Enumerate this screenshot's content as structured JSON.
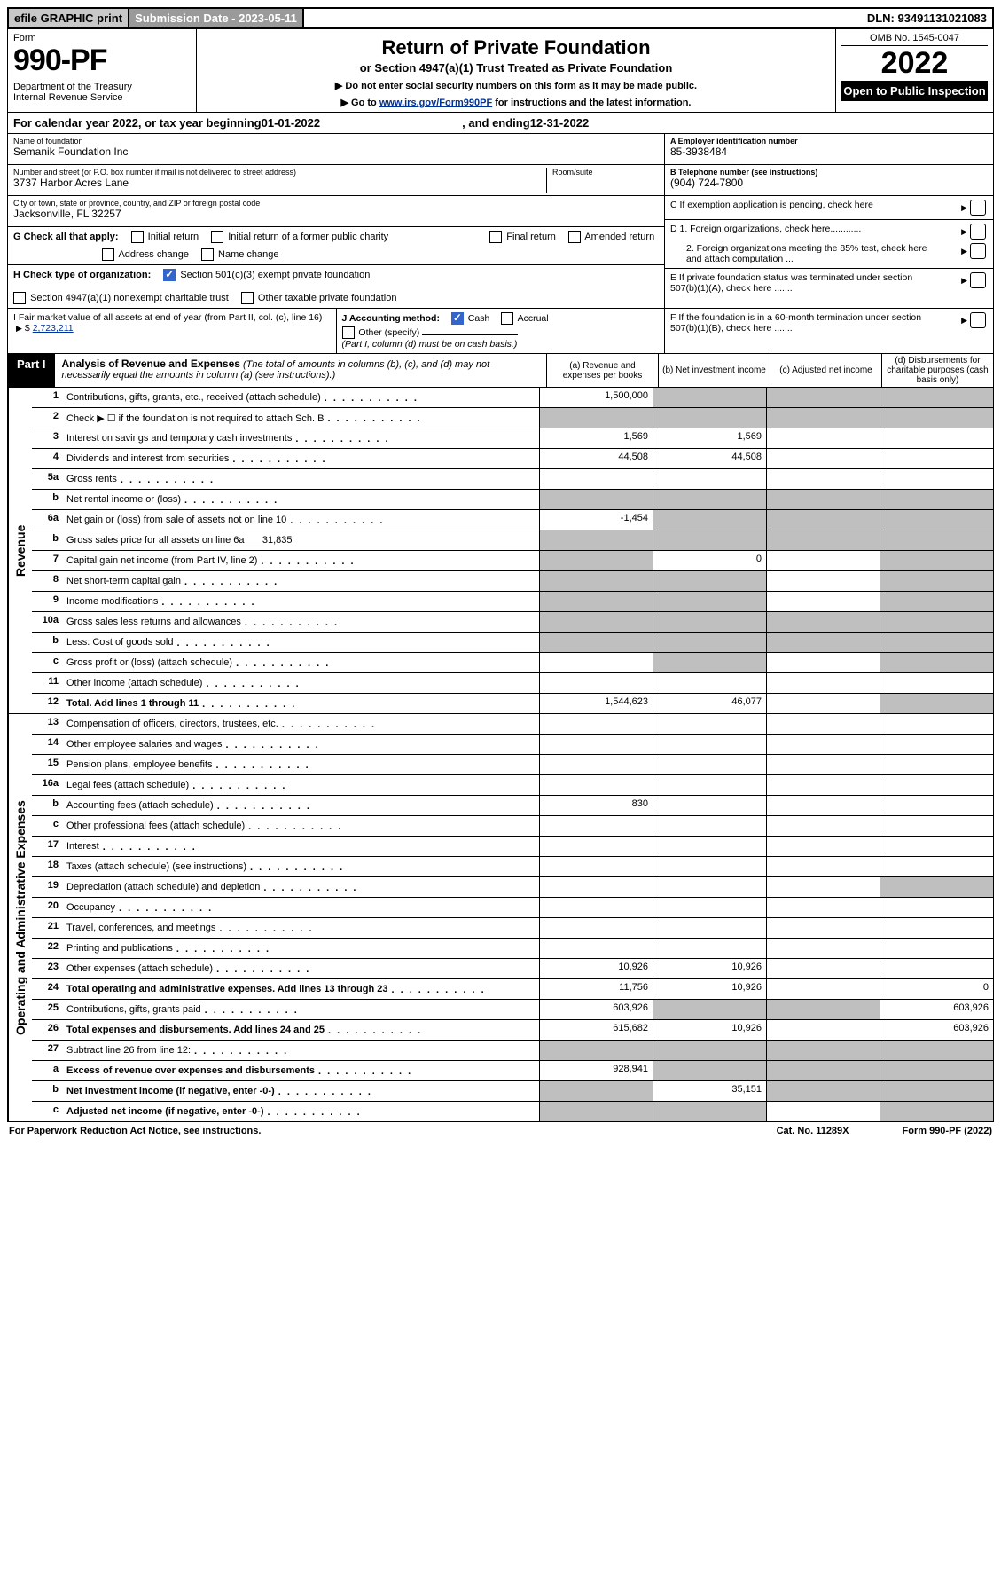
{
  "top": {
    "efile": "efile GRAPHIC print",
    "sub_label": "Submission Date - 2023-05-11",
    "dln": "DLN: 93491131021083"
  },
  "header": {
    "form_word": "Form",
    "form_no": "990-PF",
    "dept": "Department of the Treasury\nInternal Revenue Service",
    "title": "Return of Private Foundation",
    "subtitle": "or Section 4947(a)(1) Trust Treated as Private Foundation",
    "note1": "▶ Do not enter social security numbers on this form as it may be made public.",
    "note2_pre": "▶ Go to ",
    "note2_link": "www.irs.gov/Form990PF",
    "note2_post": " for instructions and the latest information.",
    "omb": "OMB No. 1545-0047",
    "year": "2022",
    "open": "Open to Public Inspection"
  },
  "calyear": {
    "pre": "For calendar year 2022, or tax year beginning ",
    "begin": "01-01-2022",
    "mid": ", and ending ",
    "end": "12-31-2022"
  },
  "info": {
    "name_label": "Name of foundation",
    "name": "Semanik Foundation Inc",
    "addr_label": "Number and street (or P.O. box number if mail is not delivered to street address)",
    "addr": "3737 Harbor Acres Lane",
    "room_label": "Room/suite",
    "city_label": "City or town, state or province, country, and ZIP or foreign postal code",
    "city": "Jacksonville, FL  32257",
    "ein_label": "A Employer identification number",
    "ein": "85-3938484",
    "tel_label": "B Telephone number (see instructions)",
    "tel": "(904) 724-7800",
    "c": "C If exemption application is pending, check here",
    "d1": "D 1. Foreign organizations, check here............",
    "d2": "2. Foreign organizations meeting the 85% test, check here and attach computation ...",
    "e": "E  If private foundation status was terminated under section 507(b)(1)(A), check here .......",
    "f": "F  If the foundation is in a 60-month termination under section 507(b)(1)(B), check here .......",
    "g_label": "G Check all that apply:",
    "g_opts": [
      "Initial return",
      "Initial return of a former public charity",
      "Final return",
      "Amended return",
      "Address change",
      "Name change"
    ],
    "h_label": "H Check type of organization:",
    "h_opts": [
      "Section 501(c)(3) exempt private foundation",
      "Section 4947(a)(1) nonexempt charitable trust",
      "Other taxable private foundation"
    ],
    "i_label": "I Fair market value of all assets at end of year (from Part II, col. (c), line 16) ",
    "i_val": "2,723,211",
    "j_label": "J Accounting method:",
    "j_opts": [
      "Cash",
      "Accrual",
      "Other (specify)"
    ],
    "j_note": "(Part I, column (d) must be on cash basis.)"
  },
  "part": {
    "badge": "Part I",
    "title": "Analysis of Revenue and Expenses",
    "note": "(The total of amounts in columns (b), (c), and (d) may not necessarily equal the amounts in column (a) (see instructions).)",
    "cols": [
      "(a)   Revenue and expenses per books",
      "(b)   Net investment income",
      "(c)   Adjusted net income",
      "(d)   Disbursements for charitable purposes (cash basis only)"
    ]
  },
  "side_labels": {
    "rev": "Revenue",
    "exp": "Operating and Administrative Expenses"
  },
  "rows": {
    "r1": {
      "no": "1",
      "desc": "Contributions, gifts, grants, etc., received (attach schedule)",
      "a": "1,500,000"
    },
    "r2": {
      "no": "2",
      "desc": "Check ▶ ☐ if the foundation is not required to attach Sch. B"
    },
    "r3": {
      "no": "3",
      "desc": "Interest on savings and temporary cash investments",
      "a": "1,569",
      "b": "1,569"
    },
    "r4": {
      "no": "4",
      "desc": "Dividends and interest from securities",
      "a": "44,508",
      "b": "44,508"
    },
    "r5a": {
      "no": "5a",
      "desc": "Gross rents"
    },
    "r5b": {
      "no": "b",
      "desc": "Net rental income or (loss)"
    },
    "r6a": {
      "no": "6a",
      "desc": "Net gain or (loss) from sale of assets not on line 10",
      "a": "-1,454"
    },
    "r6b": {
      "no": "b",
      "desc": "Gross sales price for all assets on line 6a",
      "inline": "31,835"
    },
    "r7": {
      "no": "7",
      "desc": "Capital gain net income (from Part IV, line 2)",
      "b": "0"
    },
    "r8": {
      "no": "8",
      "desc": "Net short-term capital gain"
    },
    "r9": {
      "no": "9",
      "desc": "Income modifications"
    },
    "r10a": {
      "no": "10a",
      "desc": "Gross sales less returns and allowances"
    },
    "r10b": {
      "no": "b",
      "desc": "Less: Cost of goods sold"
    },
    "r10c": {
      "no": "c",
      "desc": "Gross profit or (loss) (attach schedule)"
    },
    "r11": {
      "no": "11",
      "desc": "Other income (attach schedule)"
    },
    "r12": {
      "no": "12",
      "desc": "Total. Add lines 1 through 11",
      "a": "1,544,623",
      "b": "46,077"
    },
    "r13": {
      "no": "13",
      "desc": "Compensation of officers, directors, trustees, etc."
    },
    "r14": {
      "no": "14",
      "desc": "Other employee salaries and wages"
    },
    "r15": {
      "no": "15",
      "desc": "Pension plans, employee benefits"
    },
    "r16a": {
      "no": "16a",
      "desc": "Legal fees (attach schedule)"
    },
    "r16b": {
      "no": "b",
      "desc": "Accounting fees (attach schedule)",
      "a": "830"
    },
    "r16c": {
      "no": "c",
      "desc": "Other professional fees (attach schedule)"
    },
    "r17": {
      "no": "17",
      "desc": "Interest"
    },
    "r18": {
      "no": "18",
      "desc": "Taxes (attach schedule) (see instructions)"
    },
    "r19": {
      "no": "19",
      "desc": "Depreciation (attach schedule) and depletion"
    },
    "r20": {
      "no": "20",
      "desc": "Occupancy"
    },
    "r21": {
      "no": "21",
      "desc": "Travel, conferences, and meetings"
    },
    "r22": {
      "no": "22",
      "desc": "Printing and publications"
    },
    "r23": {
      "no": "23",
      "desc": "Other expenses (attach schedule)",
      "a": "10,926",
      "b": "10,926"
    },
    "r24": {
      "no": "24",
      "desc": "Total operating and administrative expenses. Add lines 13 through 23",
      "a": "11,756",
      "b": "10,926",
      "d": "0"
    },
    "r25": {
      "no": "25",
      "desc": "Contributions, gifts, grants paid",
      "a": "603,926",
      "d": "603,926"
    },
    "r26": {
      "no": "26",
      "desc": "Total expenses and disbursements. Add lines 24 and 25",
      "a": "615,682",
      "b": "10,926",
      "d": "603,926"
    },
    "r27": {
      "no": "27",
      "desc": "Subtract line 26 from line 12:"
    },
    "r27a": {
      "no": "a",
      "desc": "Excess of revenue over expenses and disbursements",
      "a": "928,941"
    },
    "r27b": {
      "no": "b",
      "desc": "Net investment income (if negative, enter -0-)",
      "b": "35,151"
    },
    "r27c": {
      "no": "c",
      "desc": "Adjusted net income (if negative, enter -0-)"
    }
  },
  "grey_map": {
    "r1": [
      "b",
      "c",
      "d"
    ],
    "r2": [
      "a",
      "b",
      "c",
      "d"
    ],
    "r5b": [
      "a",
      "b",
      "c",
      "d"
    ],
    "r6a": [
      "b",
      "c",
      "d"
    ],
    "r6b": [
      "a",
      "b",
      "c",
      "d"
    ],
    "r7": [
      "a",
      "d"
    ],
    "r8": [
      "a",
      "b",
      "d"
    ],
    "r9": [
      "a",
      "b",
      "d"
    ],
    "r10a": [
      "a",
      "b",
      "c",
      "d"
    ],
    "r10b": [
      "a",
      "b",
      "c",
      "d"
    ],
    "r10c": [
      "b",
      "d"
    ],
    "r12": [
      "d"
    ],
    "r19": [
      "d"
    ],
    "r25": [
      "b",
      "c"
    ],
    "r27": [
      "a",
      "b",
      "c",
      "d"
    ],
    "r27a": [
      "b",
      "c",
      "d"
    ],
    "r27b": [
      "a",
      "c",
      "d"
    ],
    "r27c": [
      "a",
      "b",
      "d"
    ]
  },
  "bold_rows": [
    "r12",
    "r24",
    "r26",
    "r27a",
    "r27b",
    "r27c"
  ],
  "footer": {
    "left": "For Paperwork Reduction Act Notice, see instructions.",
    "mid": "Cat. No. 11289X",
    "right": "Form 990-PF (2022)"
  },
  "colors": {
    "link": "#003399",
    "grey_cell": "#bfbfbf",
    "check_blue": "#3266cc"
  }
}
